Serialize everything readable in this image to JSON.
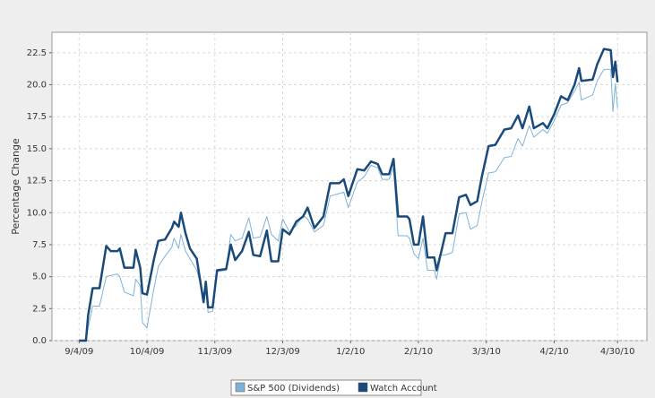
{
  "chart_data": {
    "type": "line",
    "ylabel": "Percentage Change",
    "x": [
      "2009-09-04",
      "2009-09-07",
      "2009-09-08",
      "2009-09-10",
      "2009-09-13",
      "2009-09-16",
      "2009-09-18",
      "2009-09-21",
      "2009-09-22",
      "2009-09-24",
      "2009-09-28",
      "2009-09-29",
      "2009-10-01",
      "2009-10-02",
      "2009-10-04",
      "2009-10-07",
      "2009-10-09",
      "2009-10-12",
      "2009-10-15",
      "2009-10-16",
      "2009-10-18",
      "2009-10-19",
      "2009-10-21",
      "2009-10-23",
      "2009-10-26",
      "2009-10-29",
      "2009-10-30",
      "2009-10-31",
      "2009-11-02",
      "2009-11-04",
      "2009-11-08",
      "2009-11-10",
      "2009-11-12",
      "2009-11-15",
      "2009-11-18",
      "2009-11-20",
      "2009-11-23",
      "2009-11-26",
      "2009-11-28",
      "2009-12-01",
      "2009-12-03",
      "2009-12-06",
      "2009-12-09",
      "2009-12-12",
      "2009-12-14",
      "2009-12-17",
      "2009-12-21",
      "2009-12-24",
      "2009-12-28",
      "2009-12-30",
      "2010-01-01",
      "2010-01-05",
      "2010-01-08",
      "2010-01-11",
      "2010-01-14",
      "2010-01-16",
      "2010-01-19",
      "2010-01-21",
      "2010-01-23",
      "2010-01-27",
      "2010-01-28",
      "2010-01-30",
      "2010-02-01",
      "2010-02-03",
      "2010-02-05",
      "2010-02-08",
      "2010-02-09",
      "2010-02-11",
      "2010-02-13",
      "2010-02-16",
      "2010-02-19",
      "2010-02-22",
      "2010-02-24",
      "2010-02-27",
      "2010-03-01",
      "2010-03-04",
      "2010-03-07",
      "2010-03-11",
      "2010-03-14",
      "2010-03-17",
      "2010-03-19",
      "2010-03-22",
      "2010-03-24",
      "2010-03-28",
      "2010-03-30",
      "2010-04-02",
      "2010-04-05",
      "2010-04-08",
      "2010-04-11",
      "2010-04-13",
      "2010-04-14",
      "2010-04-19",
      "2010-04-21",
      "2010-04-24",
      "2010-04-27",
      "2010-04-28",
      "2010-04-29",
      "2010-04-30"
    ],
    "series": [
      {
        "name": "S&P 500 (Dividends)",
        "color": "#7fb2d8",
        "width": 1,
        "values": [
          0,
          0,
          1.0,
          2.7,
          2.7,
          5.0,
          5.1,
          5.2,
          5.0,
          3.8,
          3.5,
          4.8,
          4.3,
          1.4,
          1.0,
          4.0,
          5.8,
          6.6,
          7.3,
          8.0,
          7.2,
          8.3,
          7.0,
          6.4,
          5.5,
          3.5,
          4.3,
          2.2,
          2.3,
          5.4,
          5.5,
          8.3,
          7.8,
          8.0,
          9.6,
          8.0,
          8.1,
          9.7,
          8.3,
          7.8,
          9.5,
          8.5,
          9.0,
          9.8,
          9.5,
          8.5,
          9.0,
          11.3,
          11.5,
          11.6,
          10.4,
          12.4,
          12.8,
          13.7,
          13.5,
          12.6,
          12.6,
          13.5,
          8.2,
          8.2,
          8.0,
          6.8,
          6.4,
          8.0,
          5.5,
          5.5,
          4.8,
          6.7,
          6.7,
          6.9,
          9.9,
          10.0,
          8.7,
          9.0,
          10.8,
          13.1,
          13.2,
          14.3,
          14.4,
          15.8,
          15.2,
          16.8,
          15.9,
          16.5,
          16.2,
          17.2,
          18.4,
          18.6,
          19.5,
          20.2,
          18.8,
          19.2,
          20.3,
          21.2,
          21.2,
          17.9,
          20.1,
          18.2
        ]
      },
      {
        "name": "Watch Account",
        "color": "#1a4a7a",
        "width": 2.5,
        "values": [
          0,
          0,
          2.0,
          4.1,
          4.1,
          7.4,
          7.0,
          7.0,
          7.2,
          5.7,
          5.7,
          7.1,
          5.7,
          3.7,
          3.6,
          6.3,
          7.8,
          7.9,
          8.8,
          9.3,
          8.9,
          10.0,
          8.4,
          7.2,
          6.4,
          3.0,
          4.6,
          2.6,
          2.6,
          5.5,
          5.6,
          7.5,
          6.3,
          7.0,
          8.5,
          6.7,
          6.6,
          8.6,
          6.2,
          6.2,
          8.7,
          8.3,
          9.3,
          9.7,
          10.4,
          8.8,
          9.7,
          12.3,
          12.3,
          12.6,
          11.3,
          13.4,
          13.3,
          14.0,
          13.8,
          13.0,
          13.0,
          14.2,
          9.7,
          9.7,
          9.5,
          7.5,
          7.5,
          9.7,
          6.5,
          6.5,
          5.5,
          6.9,
          8.4,
          8.4,
          11.2,
          11.4,
          10.6,
          10.9,
          12.8,
          15.2,
          15.3,
          16.5,
          16.6,
          17.6,
          16.6,
          18.3,
          16.6,
          17.0,
          16.6,
          17.7,
          19.1,
          18.8,
          20.0,
          21.3,
          20.3,
          20.4,
          21.6,
          22.8,
          22.7,
          20.6,
          21.8,
          20.2
        ]
      }
    ],
    "xlim": [
      "2009-08-23",
      "2010-05-13"
    ],
    "xticks": [
      {
        "value": "2009-09-04",
        "label": "9/4/09"
      },
      {
        "value": "2009-10-04",
        "label": "10/4/09"
      },
      {
        "value": "2009-11-03",
        "label": "11/3/09"
      },
      {
        "value": "2009-12-03",
        "label": "12/3/09"
      },
      {
        "value": "2010-01-02",
        "label": "1/2/10"
      },
      {
        "value": "2010-02-01",
        "label": "2/1/10"
      },
      {
        "value": "2010-03-03",
        "label": "3/3/10"
      },
      {
        "value": "2010-04-02",
        "label": "4/2/10"
      },
      {
        "value": "2010-04-30",
        "label": "4/30/10"
      }
    ],
    "ylim": [
      0,
      24.1
    ],
    "yticks": [
      {
        "value": 0,
        "label": "0.0"
      },
      2.5,
      {
        "value": 5,
        "label": "5.0"
      },
      7.5,
      {
        "value": 10,
        "label": "10.0"
      },
      12.5,
      {
        "value": 15,
        "label": "15.0"
      },
      17.5,
      {
        "value": 20,
        "label": "20.0"
      },
      22.5
    ],
    "grid": true,
    "legend": "bottom"
  }
}
